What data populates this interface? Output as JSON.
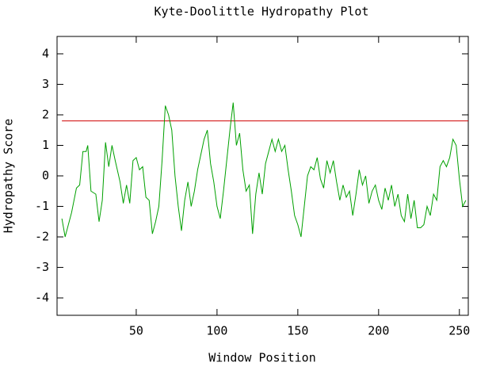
{
  "chart_data": {
    "type": "line",
    "title": "Kyte-Doolittle Hydropathy Plot",
    "xlabel": "Window Position",
    "ylabel": "Hydropathy Score",
    "x": [
      4,
      6,
      8,
      10,
      13,
      15,
      17,
      19,
      20,
      22,
      25,
      27,
      29,
      31,
      33,
      35,
      37,
      40,
      42,
      44,
      46,
      48,
      50,
      52,
      54,
      56,
      58,
      60,
      62,
      64,
      66,
      68,
      70,
      72,
      74,
      76,
      78,
      80,
      82,
      84,
      86,
      88,
      90,
      92,
      94,
      96,
      98,
      100,
      102,
      104,
      106,
      108,
      110,
      112,
      114,
      116,
      118,
      120,
      122,
      124,
      126,
      128,
      130,
      132,
      134,
      136,
      138,
      140,
      142,
      144,
      146,
      148,
      150,
      152,
      154,
      156,
      158,
      160,
      162,
      164,
      166,
      168,
      170,
      172,
      174,
      176,
      178,
      180,
      182,
      184,
      186,
      188,
      190,
      192,
      194,
      196,
      198,
      200,
      202,
      204,
      206,
      208,
      210,
      212,
      214,
      216,
      218,
      220,
      222,
      224,
      226,
      228,
      230,
      232,
      234,
      236,
      238,
      240,
      242,
      244,
      246,
      248,
      250,
      252,
      254
    ],
    "series": [
      {
        "name": "Hydropathy",
        "color": "#00a000",
        "values": [
          -1.4,
          -2.0,
          -1.6,
          -1.2,
          -0.4,
          -0.3,
          0.8,
          0.8,
          1.0,
          -0.5,
          -0.6,
          -1.5,
          -0.8,
          1.1,
          0.3,
          1.0,
          0.5,
          -0.2,
          -0.9,
          -0.3,
          -0.9,
          0.5,
          0.6,
          0.2,
          0.3,
          -0.7,
          -0.8,
          -1.9,
          -1.5,
          -1.0,
          0.5,
          2.3,
          2.0,
          1.5,
          0.0,
          -1.0,
          -1.8,
          -0.8,
          -0.2,
          -1.0,
          -0.5,
          0.2,
          0.7,
          1.2,
          1.5,
          0.4,
          -0.2,
          -1.0,
          -1.4,
          -0.5,
          0.5,
          1.5,
          2.4,
          1.0,
          1.4,
          0.2,
          -0.5,
          -0.3,
          -1.9,
          -0.6,
          0.1,
          -0.6,
          0.4,
          0.8,
          1.2,
          0.8,
          1.2,
          0.8,
          1.0,
          0.2,
          -0.5,
          -1.3,
          -1.6,
          -2.0,
          -1.0,
          0.0,
          0.3,
          0.2,
          0.6,
          -0.1,
          -0.4,
          0.5,
          0.1,
          0.5,
          -0.2,
          -0.8,
          -0.3,
          -0.7,
          -0.5,
          -1.3,
          -0.6,
          0.2,
          -0.3,
          0.0,
          -0.9,
          -0.5,
          -0.3,
          -0.8,
          -1.1,
          -0.4,
          -0.8,
          -0.3,
          -1.0,
          -0.6,
          -1.3,
          -1.5,
          -0.6,
          -1.4,
          -0.8,
          -1.7,
          -1.7,
          -1.6,
          -1.0,
          -1.3,
          -0.6,
          -0.8,
          0.3,
          0.5,
          0.3,
          0.6,
          1.2,
          1.0,
          -0.1,
          -1.0,
          -0.8
        ]
      }
    ],
    "threshold": {
      "value": 1.8,
      "color": "#d00000"
    },
    "xlim": [
      1,
      255.5
    ],
    "xticks": [
      50,
      100,
      150,
      200,
      250
    ],
    "ylim": [
      -4.57,
      4.57
    ],
    "yticks": [
      -4,
      -3,
      -2,
      -1,
      0,
      1,
      2,
      3,
      4
    ]
  }
}
